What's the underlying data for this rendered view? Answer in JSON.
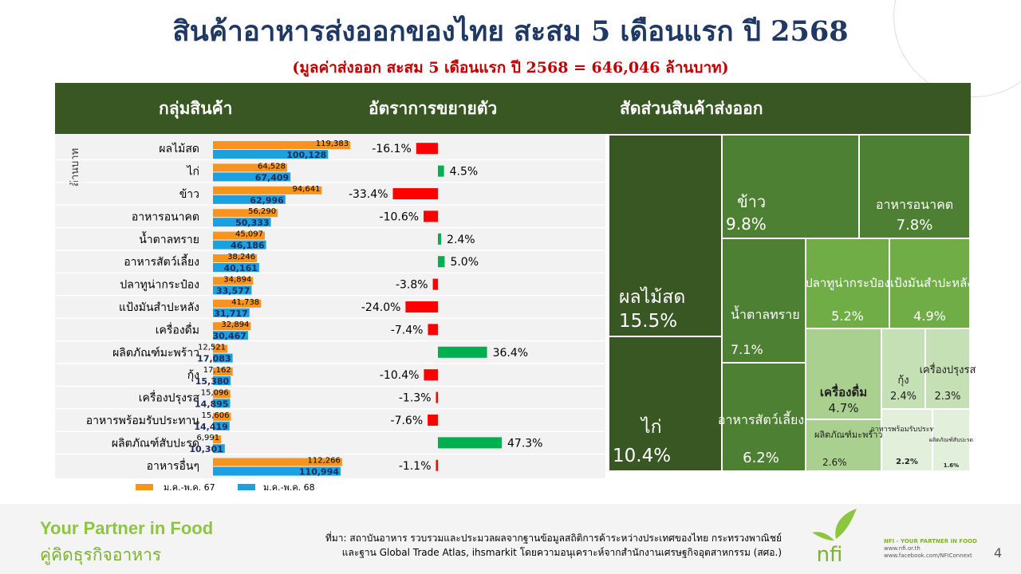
{
  "title": "สินค้าอาหารส่งออกของไทย สะสม 5 เดือนแรก ปี 2568",
  "subtitle": "(มูลค่าส่งออก สะสม 5 เดือนแรก  ปี 2568   =  646,046 ล้านบาท)",
  "header": {
    "col1": "กลุ่มสินค้า",
    "col2": "อัตราการขยายตัว",
    "col3": "สัดส่วนสินค้าส่งออก"
  },
  "chart_data": [
    {
      "type": "bar",
      "orientation": "horizontal",
      "ylabel": "ล้านบาท",
      "categories": [
        "ผลไม้สด",
        "ไก่",
        "ข้าว",
        "อาหารอนาคต",
        "น้ำตาลทราย",
        "อาหารสัตว์เลี้ยง",
        "ปลาทูน่ากระป๋อง",
        "แป้งมันสำปะหลัง",
        "เครื่องดื่ม",
        "ผลิตภัณฑ์มะพร้าว",
        "กุ้ง",
        "เครื่องปรุงรส",
        "อาหารพร้อมรับประทาน",
        "ผลิตภัณฑ์สับปะรด",
        "อาหารอื่นๆ"
      ],
      "series": [
        {
          "name": "ม.ค.-พ.ค. 67",
          "color": "#f7941d",
          "values": [
            119383,
            64528,
            94641,
            56290,
            45097,
            38246,
            34894,
            41738,
            32894,
            12521,
            17162,
            15096,
            15606,
            6991,
            112266
          ],
          "labels": [
            "119,383",
            "64,528",
            "94,641",
            "56,290",
            "45,097",
            "38,246",
            "34,894",
            "41,738",
            "32,894",
            "12,521",
            "17,162",
            "15,096",
            "15,606",
            "6,991",
            "112,266"
          ]
        },
        {
          "name": "ม.ค.-พ.ค. 68",
          "color": "#1ba1e2",
          "values": [
            100128,
            67409,
            62996,
            50333,
            46186,
            40161,
            33577,
            31717,
            30467,
            17083,
            15380,
            14895,
            14419,
            10301,
            110994
          ],
          "labels": [
            "100,128",
            "67,409",
            "62,996",
            "50,333",
            "46,186",
            "40,161",
            "33,577",
            "31,717",
            "30,467",
            "17,083",
            "15,380",
            "14,895",
            "14,419",
            "10,301",
            "110,994"
          ]
        }
      ]
    },
    {
      "type": "bar",
      "orientation": "horizontal",
      "categories": [
        "ผลไม้สด",
        "ไก่",
        "ข้าว",
        "อาหารอนาคต",
        "น้ำตาลทราย",
        "อาหารสัตว์เลี้ยง",
        "ปลาทูน่ากระป๋อง",
        "แป้งมันสำปะหลัง",
        "เครื่องดื่ม",
        "ผลิตภัณฑ์มะพร้าว",
        "กุ้ง",
        "เครื่องปรุงรส",
        "อาหารพร้อมรับประทาน",
        "ผลิตภัณฑ์สับปะรด",
        "อาหารอื่นๆ"
      ],
      "values": [
        -16.1,
        4.5,
        -33.4,
        -10.6,
        2.4,
        5.0,
        -3.8,
        -24.0,
        -7.4,
        36.4,
        -10.4,
        -1.3,
        -7.6,
        47.3,
        -1.1
      ],
      "labels": [
        "-16.1%",
        "4.5%",
        "-33.4%",
        "-10.6%",
        "2.4%",
        "5.0%",
        "-3.8%",
        "-24.0%",
        "-7.4%",
        "36.4%",
        "-10.4%",
        "-1.3%",
        "-7.6%",
        "47.3%",
        "-1.1%"
      ],
      "positive_color": "#00b050",
      "negative_color": "#ff0000"
    },
    {
      "type": "treemap",
      "items": [
        {
          "name": "ผลไม้สด",
          "value": 15.5,
          "label": "15.5%",
          "color": "#385723"
        },
        {
          "name": "ไก่",
          "value": 10.4,
          "label": "10.4%",
          "color": "#385723"
        },
        {
          "name": "ข้าว",
          "value": 9.8,
          "label": "9.8%",
          "color": "#4d8032"
        },
        {
          "name": "อาหารอนาคต",
          "value": 7.8,
          "label": "7.8%",
          "color": "#4d8032"
        },
        {
          "name": "น้ำตาลทราย",
          "value": 7.1,
          "label": "7.1%",
          "color": "#4d8032"
        },
        {
          "name": "อาหารสัตว์เลี้ยง",
          "value": 6.2,
          "label": "6.2%",
          "color": "#4d8032"
        },
        {
          "name": "ปลาทูน่ากระป๋อง",
          "value": 5.2,
          "label": "5.2%",
          "color": "#70ad47"
        },
        {
          "name": "แป้งมันสำปะหลัง",
          "value": 4.9,
          "label": "4.9%",
          "color": "#70ad47"
        },
        {
          "name": "เครื่องดื่ม",
          "value": 4.7,
          "label": "4.7%",
          "color": "#a9d08e"
        },
        {
          "name": "ผลิตภัณฑ์มะพร้าว",
          "value": 2.6,
          "label": "2.6%",
          "color": "#a9d08e"
        },
        {
          "name": "กุ้ง",
          "value": 2.4,
          "label": "2.4%",
          "color": "#c5e0b4"
        },
        {
          "name": "เครื่องปรุงรส",
          "value": 2.3,
          "label": "2.3%",
          "color": "#c5e0b4"
        },
        {
          "name": "อาหารพร้อมรับประทาน",
          "value": 2.2,
          "label": "2.2%",
          "color": "#e2efda"
        },
        {
          "name": "ผลิตภัณฑ์สับปะรด",
          "value": 1.6,
          "label": "1.6%",
          "color": "#e2efda"
        }
      ]
    }
  ],
  "footer": {
    "tagline_en": "Your Partner in Food",
    "tagline_th": "คู่คิดธุรกิจอาหาร",
    "source_line1": "ที่มา: สถาบันอาหาร รวบรวมและประมวลผลจากฐานข้อมูลสถิติการค้าระหว่างประเทศของไทย กระทรวงพาณิชย์",
    "source_line2": "และฐาน Global Trade Atlas, ihsmarkit  โดยความอนุเคราะห์จากสำนักงานเศรษฐกิจอุตสาหกรรม (สศอ.)",
    "logo_text": "nfi",
    "brand_line": "NFI - YOUR PARTNER IN FOOD",
    "web": "www.nfi.or.th",
    "facebook": "www.facebook.com/NFIConnext",
    "page": "4"
  }
}
